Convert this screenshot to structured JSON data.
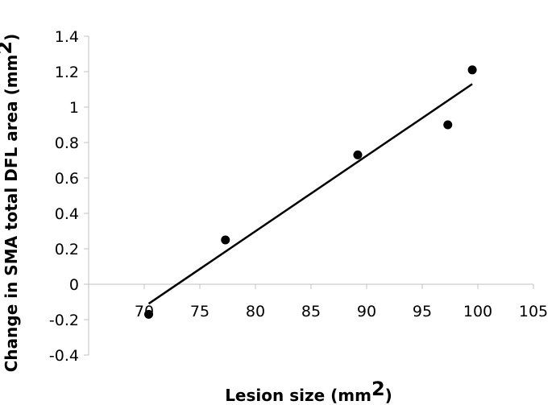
{
  "chart_data": {
    "type": "scatter",
    "xlabel": "Lesion size (mm",
    "xlabel_sup": "2",
    "xlabel_tail": ")",
    "ylabel": "Change in SMA total DFL area (mm",
    "ylabel_sup": "2",
    "ylabel_tail": ")",
    "xlim": [
      65,
      105
    ],
    "ylim": [
      -0.4,
      1.4
    ],
    "x_ticks": [
      70,
      75,
      80,
      85,
      90,
      95,
      100,
      105
    ],
    "x_tick_labels": [
      "70",
      "75",
      "80",
      "85",
      "90",
      "95",
      "100",
      "105"
    ],
    "y_ticks": [
      -0.4,
      -0.2,
      0,
      0.2,
      0.4,
      0.6,
      0.8,
      1,
      1.2,
      1.4
    ],
    "y_tick_labels": [
      "-0.4",
      "-0.2",
      "0",
      "0.2",
      "0.4",
      "0.6",
      "0.8",
      "1",
      "1.2",
      "1.4"
    ],
    "grid": false,
    "legend": "none",
    "series": [
      {
        "points": [
          {
            "x": 70.4,
            "y": -0.17
          },
          {
            "x": 77.3,
            "y": 0.25
          },
          {
            "x": 89.2,
            "y": 0.73
          },
          {
            "x": 97.3,
            "y": 0.9
          },
          {
            "x": 99.5,
            "y": 1.21
          }
        ]
      }
    ],
    "trendline": {
      "type": "linear",
      "x_start": 70.4,
      "y_start": -0.11,
      "x_end": 99.5,
      "y_end": 1.13
    },
    "colors": {
      "points": "#000000",
      "trendline": "#000000",
      "axes": "#c0c0c0"
    }
  }
}
